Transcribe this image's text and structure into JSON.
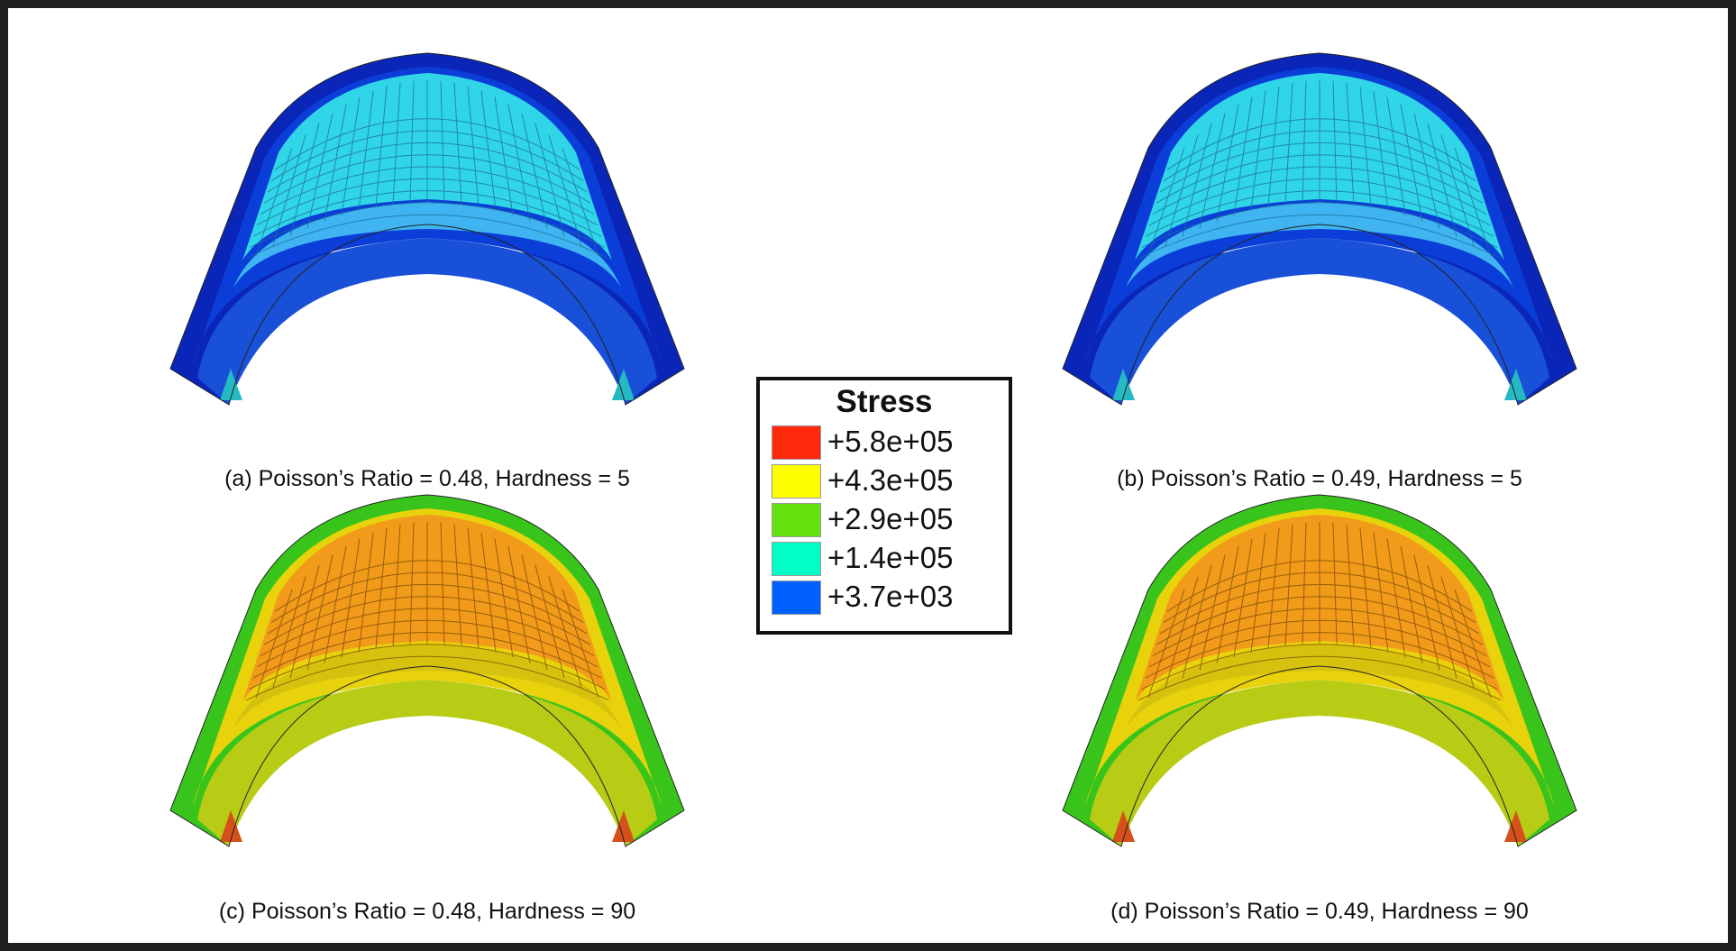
{
  "colors": {
    "frame": "#1e1e1e",
    "background": "#ffffff"
  },
  "legend": {
    "title": "Stress",
    "entries": [
      {
        "label": "+5.8e+05",
        "color": "#ff2a0c"
      },
      {
        "label": "+4.3e+05",
        "color": "#ffff00"
      },
      {
        "label": "+2.9e+05",
        "color": "#66e10f"
      },
      {
        "label": "+1.4e+05",
        "color": "#00ffc4"
      },
      {
        "label": "+3.7e+03",
        "color": "#0060ff"
      }
    ]
  },
  "panels": [
    {
      "caption": "(a) Poisson’s Ratio = 0.48, Hardness = 5",
      "palette": {
        "top": "#30d5e8",
        "band": "#3fb4f0",
        "side": "#0b3ed8",
        "edge": "#0a26b8",
        "inner": "#1850d8",
        "grid": "#1d6d9a",
        "foot": "#26b9c4"
      }
    },
    {
      "caption": "(b) Poisson’s Ratio = 0.49, Hardness = 5",
      "palette": {
        "top": "#30d5e8",
        "band": "#3fb4f0",
        "side": "#0b3ed8",
        "edge": "#0a26b8",
        "inner": "#1850d8",
        "grid": "#1d6d9a",
        "foot": "#26b9c4"
      }
    },
    {
      "caption": "(c) Poisson’s Ratio = 0.48, Hardness = 90",
      "palette": {
        "top": "#f29a1a",
        "band": "#d6c20e",
        "side": "#e8d20c",
        "edge": "#39c41c",
        "inner": "#b8cc16",
        "grid": "#7a4a08",
        "foot": "#d5501a"
      }
    },
    {
      "caption": "(d) Poisson’s Ratio = 0.49, Hardness = 90",
      "palette": {
        "top": "#f29a1a",
        "band": "#d6c20e",
        "side": "#e8d20c",
        "edge": "#39c41c",
        "inner": "#b8cc16",
        "grid": "#7a4a08",
        "foot": "#d5501a"
      }
    }
  ]
}
